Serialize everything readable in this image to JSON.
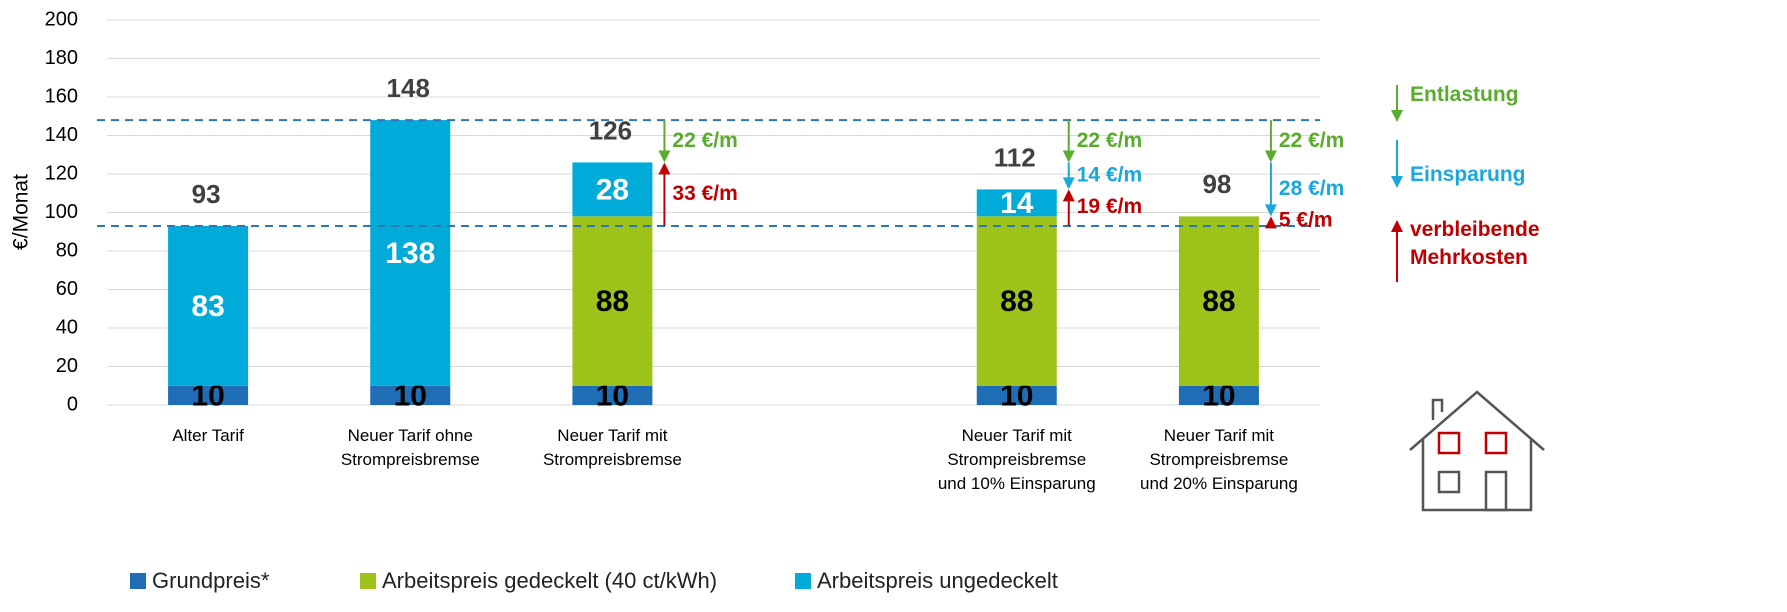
{
  "chart_data": {
    "type": "stacked_bar",
    "y_label": "€/Monat",
    "categories": [
      "Alter Tarif",
      "Neuer Tarif ohne Strompreisbremse",
      "Neuer Tarif mit Strompreisbremse",
      null,
      "Neuer Tarif mit Strompreisbremse und 10% Einsparung",
      "Neuer Tarif mit Strompreisbremse und 20% Einsparung"
    ],
    "series": [
      {
        "name": "Grundpreis*",
        "color": "#1f6db4",
        "label_color": "#000000",
        "values": [
          10,
          10,
          10,
          null,
          10,
          10
        ]
      },
      {
        "name": "Arbeitspreis gedeckelt (40 ct/kWh)",
        "color": "#9dc31a",
        "label_color": "#000000",
        "values": [
          null,
          null,
          88,
          null,
          88,
          88
        ]
      },
      {
        "name": "Arbeitspreis ungedeckelt",
        "color": "#00abd9",
        "label_color": "#ffffff",
        "values": [
          83,
          138,
          28,
          null,
          14,
          null
        ]
      }
    ],
    "totals": [
      93,
      148,
      126,
      null,
      112,
      98
    ],
    "reference_lines": [
      148,
      93
    ],
    "arrows": [
      {
        "category": "Neuer Tarif mit Strompreisbremse",
        "from": 148,
        "to": 126,
        "label": "22 €/m",
        "color": "#5aac2e"
      },
      {
        "category": "Neuer Tarif mit Strompreisbremse",
        "from": 93,
        "to": 126,
        "label": "33 €/m",
        "color": "#c00000"
      },
      {
        "category": "Neuer Tarif mit Strompreisbremse und 10% Einsparung",
        "from": 148,
        "to": 126,
        "label": "22 €/m",
        "color": "#5aac2e"
      },
      {
        "category": "Neuer Tarif mit Strompreisbremse und 10% Einsparung",
        "from": 126,
        "to": 112,
        "label": "14 €/m",
        "color": "#1aa7dc"
      },
      {
        "category": "Neuer Tarif mit Strompreisbremse und 10% Einsparung",
        "from": 93,
        "to": 112,
        "label": "19 €/m",
        "color": "#c00000"
      },
      {
        "category": "Neuer Tarif mit Strompreisbremse und 20% Einsparung",
        "from": 148,
        "to": 126,
        "label": "22 €/m",
        "color": "#5aac2e"
      },
      {
        "category": "Neuer Tarif mit Strompreisbremse und 20% Einsparung",
        "from": 126,
        "to": 98,
        "label": "28 €/m",
        "color": "#1aa7dc"
      },
      {
        "category": "Neuer Tarif mit Strompreisbremse und 20% Einsparung",
        "from": 93,
        "to": 98,
        "label": "5 €/m",
        "color": "#c00000"
      }
    ],
    "side_legend": [
      {
        "label": "Entlastung",
        "color": "#5aac2e",
        "direction": "down"
      },
      {
        "label": "Einsparung",
        "color": "#1aa7dc",
        "direction": "down"
      },
      {
        "label": "verbleibende Mehrkosten",
        "color": "#c00000",
        "direction": "up"
      }
    ],
    "ylim": [
      0,
      200
    ],
    "yticks": [
      0,
      20,
      40,
      60,
      80,
      100,
      120,
      140,
      160,
      180,
      200
    ],
    "grid": true
  }
}
